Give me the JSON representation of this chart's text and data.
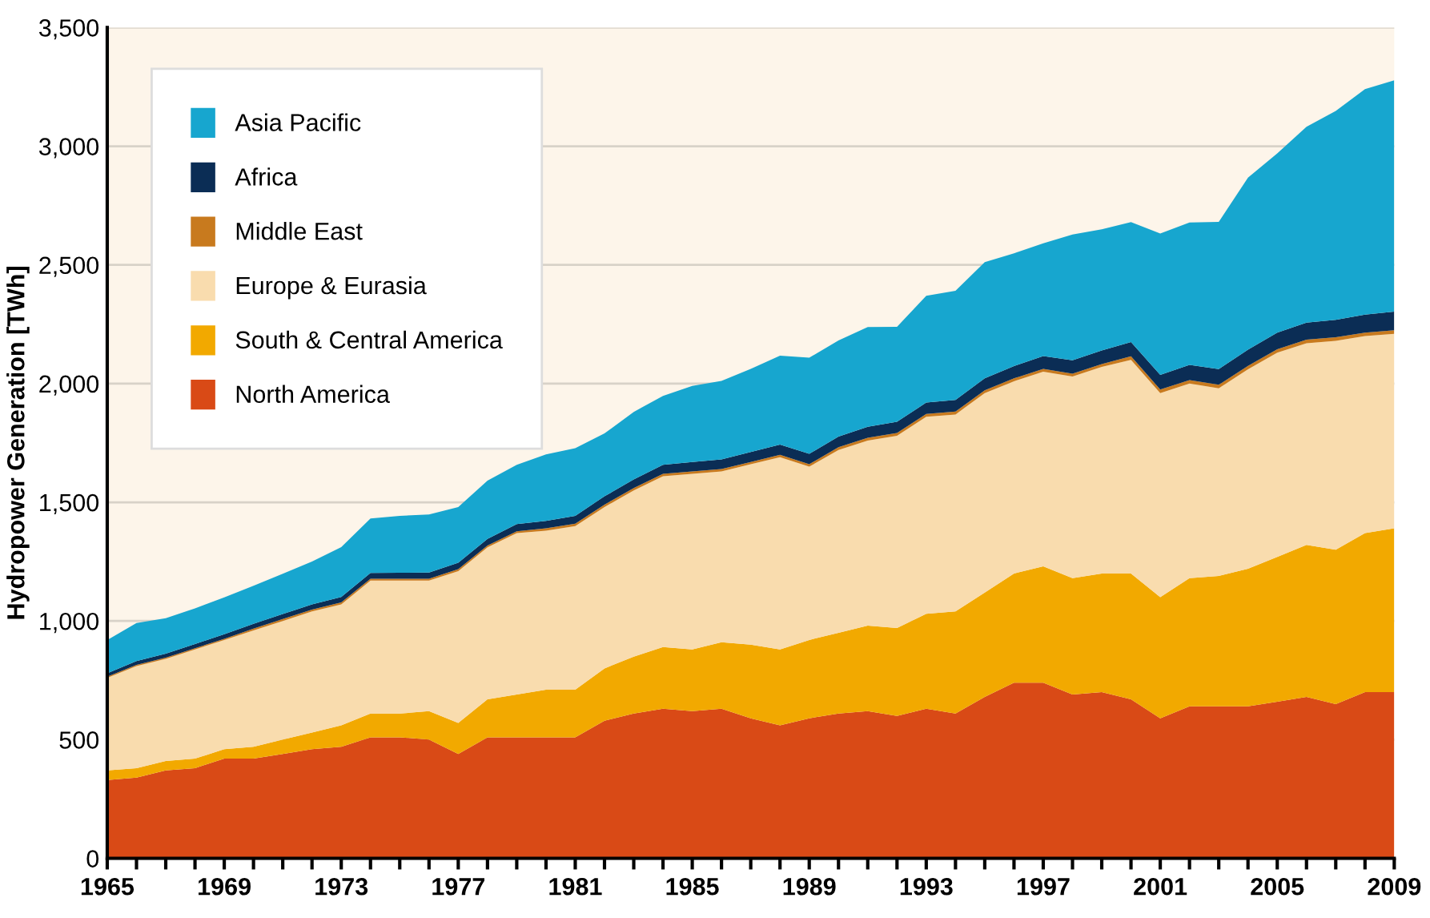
{
  "chart_data": {
    "type": "area",
    "stacked": true,
    "ylabel": "Hydropower Generation [TWh]",
    "x": [
      1965,
      1966,
      1967,
      1968,
      1969,
      1970,
      1971,
      1972,
      1973,
      1974,
      1975,
      1976,
      1977,
      1978,
      1979,
      1980,
      1981,
      1982,
      1983,
      1984,
      1985,
      1986,
      1987,
      1988,
      1989,
      1990,
      1991,
      1992,
      1993,
      1994,
      1995,
      1996,
      1997,
      1998,
      1999,
      2000,
      2001,
      2002,
      2003,
      2004,
      2005,
      2006,
      2007,
      2008,
      2009
    ],
    "series": [
      {
        "name": "North America",
        "color": "#d94a16",
        "values": [
          330,
          340,
          370,
          380,
          420,
          420,
          440,
          460,
          470,
          510,
          510,
          500,
          440,
          510,
          510,
          510,
          510,
          580,
          610,
          630,
          620,
          630,
          590,
          560,
          590,
          610,
          620,
          600,
          630,
          610,
          680,
          740,
          740,
          690,
          700,
          670,
          590,
          640,
          640,
          640,
          660,
          680,
          650,
          700,
          700
        ]
      },
      {
        "name": "South & Central America",
        "color": "#f2a900",
        "values": [
          40,
          40,
          40,
          40,
          40,
          50,
          60,
          70,
          90,
          100,
          100,
          120,
          130,
          160,
          180,
          200,
          200,
          220,
          240,
          260,
          260,
          280,
          310,
          320,
          330,
          340,
          360,
          370,
          400,
          430,
          440,
          460,
          490,
          490,
          500,
          530,
          510,
          540,
          550,
          580,
          610,
          640,
          650,
          670,
          690
        ]
      },
      {
        "name": "Europe & Eurasia",
        "color": "#f9dcae",
        "values": [
          390,
          430,
          430,
          460,
          460,
          490,
          500,
          510,
          510,
          560,
          560,
          550,
          640,
          640,
          680,
          670,
          690,
          680,
          700,
          720,
          740,
          720,
          760,
          810,
          730,
          770,
          780,
          810,
          830,
          830,
          840,
          810,
          820,
          850,
          870,
          900,
          860,
          820,
          790,
          840,
          860,
          850,
          880,
          830,
          820
        ]
      },
      {
        "name": "Middle East",
        "color": "#c87a1e",
        "values": [
          5,
          5,
          5,
          5,
          5,
          8,
          8,
          8,
          8,
          8,
          8,
          8,
          8,
          8,
          8,
          10,
          10,
          10,
          10,
          10,
          10,
          10,
          10,
          10,
          10,
          12,
          12,
          12,
          12,
          12,
          12,
          12,
          12,
          12,
          12,
          15,
          15,
          15,
          15,
          15,
          15,
          15,
          15,
          15,
          15
        ]
      },
      {
        "name": "Africa",
        "color": "#0b2d55",
        "values": [
          15,
          16,
          17,
          18,
          19,
          20,
          21,
          22,
          23,
          24,
          25,
          26,
          27,
          28,
          30,
          32,
          33,
          35,
          36,
          38,
          40,
          41,
          42,
          43,
          44,
          45,
          46,
          47,
          48,
          49,
          50,
          52,
          54,
          56,
          58,
          60,
          62,
          64,
          66,
          68,
          70,
          72,
          74,
          76,
          78
        ]
      },
      {
        "name": "Asia Pacific",
        "color": "#17a6cf",
        "values": [
          140,
          160,
          150,
          150,
          155,
          160,
          170,
          180,
          210,
          230,
          240,
          245,
          235,
          245,
          250,
          280,
          285,
          265,
          285,
          290,
          320,
          330,
          350,
          375,
          405,
          405,
          420,
          400,
          450,
          460,
          490,
          475,
          475,
          530,
          510,
          505,
          595,
          600,
          620,
          725,
          755,
          825,
          880,
          950,
          975
        ]
      }
    ],
    "xlim": [
      1965,
      2009
    ],
    "xticks": [
      1965,
      {
        "value": 1966,
        "label": null
      },
      {
        "value": 1967,
        "label": null
      },
      {
        "value": 1968,
        "label": null
      },
      1969,
      {
        "value": 1970,
        "label": null
      },
      {
        "value": 1971,
        "label": null
      },
      {
        "value": 1972,
        "label": null
      },
      1973,
      {
        "value": 1974,
        "label": null
      },
      {
        "value": 1975,
        "label": null
      },
      {
        "value": 1976,
        "label": null
      },
      1977,
      {
        "value": 1978,
        "label": null
      },
      {
        "value": 1979,
        "label": null
      },
      {
        "value": 1980,
        "label": null
      },
      1981,
      {
        "value": 1982,
        "label": null
      },
      {
        "value": 1983,
        "label": null
      },
      {
        "value": 1984,
        "label": null
      },
      1985,
      {
        "value": 1986,
        "label": null
      },
      {
        "value": 1987,
        "label": null
      },
      {
        "value": 1988,
        "label": null
      },
      1989,
      {
        "value": 1990,
        "label": null
      },
      {
        "value": 1991,
        "label": null
      },
      {
        "value": 1992,
        "label": null
      },
      1993,
      {
        "value": 1994,
        "label": null
      },
      {
        "value": 1995,
        "label": null
      },
      {
        "value": 1996,
        "label": null
      },
      1997,
      {
        "value": 1998,
        "label": null
      },
      {
        "value": 1999,
        "label": null
      },
      {
        "value": 2000,
        "label": null
      },
      2001,
      {
        "value": 2002,
        "label": null
      },
      {
        "value": 2003,
        "label": null
      },
      {
        "value": 2004,
        "label": null
      },
      2005,
      {
        "value": 2006,
        "label": null
      },
      {
        "value": 2007,
        "label": null
      },
      {
        "value": 2008,
        "label": null
      },
      2009
    ],
    "ylim": [
      0,
      3500
    ],
    "yticks": [
      0,
      500,
      {
        "value": 1000,
        "label": "1,000"
      },
      {
        "value": 1500,
        "label": "1,500"
      },
      {
        "value": 2000,
        "label": "2,000"
      },
      {
        "value": 2500,
        "label": "2,500"
      },
      {
        "value": 3000,
        "label": "3,000"
      },
      {
        "value": 3500,
        "label": "3,500"
      }
    ],
    "grid": "y",
    "legend": "top left"
  }
}
